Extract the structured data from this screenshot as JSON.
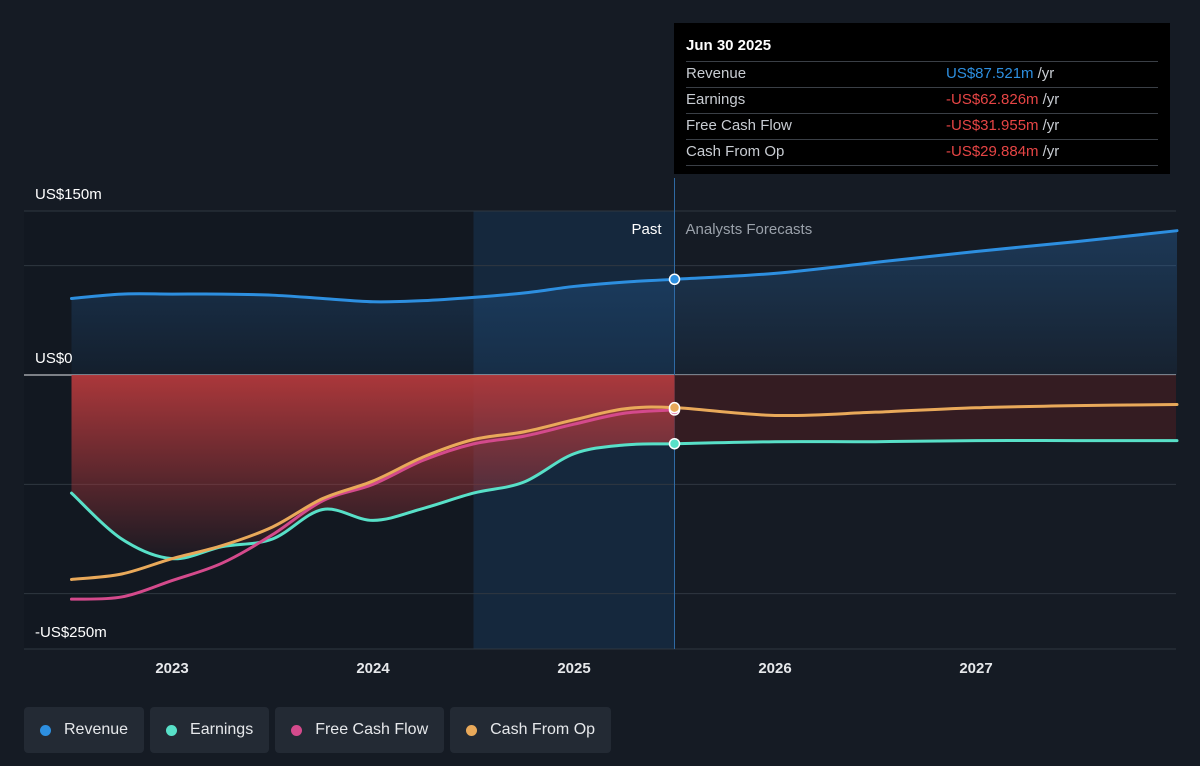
{
  "chart_data": {
    "type": "line",
    "y_unit": "US$ millions",
    "ylim": [
      -250,
      150
    ],
    "y_tick_labels": [
      {
        "value": 150,
        "label": "US$150m"
      },
      {
        "value": 0,
        "label": "US$0"
      },
      {
        "value": -250,
        "label": "-US$250m"
      }
    ],
    "x_tick_labels": [
      {
        "value": 2023,
        "label": "2023"
      },
      {
        "value": 2024,
        "label": "2024"
      },
      {
        "value": 2025,
        "label": "2025"
      },
      {
        "value": 2026,
        "label": "2026"
      },
      {
        "value": 2027,
        "label": "2027"
      }
    ],
    "xlim": [
      2022.26,
      2028.0
    ],
    "shaded_from": 2024.5,
    "divider_at": 2025.5,
    "past_label": "Past",
    "forecast_label": "Analysts Forecasts",
    "series": [
      {
        "name": "Revenue",
        "color": "#2d8fe0",
        "points": [
          [
            2022.5,
            70
          ],
          [
            2022.75,
            74
          ],
          [
            2023.0,
            74
          ],
          [
            2023.25,
            74
          ],
          [
            2023.5,
            73
          ],
          [
            2023.75,
            70
          ],
          [
            2024.0,
            67
          ],
          [
            2024.25,
            68
          ],
          [
            2024.5,
            71
          ],
          [
            2024.75,
            75
          ],
          [
            2025.0,
            81
          ],
          [
            2025.25,
            85
          ],
          [
            2025.5,
            87.521
          ],
          [
            2026.0,
            93
          ],
          [
            2026.5,
            103
          ],
          [
            2027.0,
            113
          ],
          [
            2027.5,
            122
          ],
          [
            2028.0,
            132
          ]
        ]
      },
      {
        "name": "Earnings",
        "color": "#58e0c8",
        "points": [
          [
            2022.5,
            -108
          ],
          [
            2022.75,
            -150
          ],
          [
            2023.0,
            -168
          ],
          [
            2023.25,
            -157
          ],
          [
            2023.5,
            -150
          ],
          [
            2023.75,
            -123
          ],
          [
            2024.0,
            -133
          ],
          [
            2024.25,
            -122
          ],
          [
            2024.5,
            -108
          ],
          [
            2024.75,
            -98
          ],
          [
            2025.0,
            -72
          ],
          [
            2025.25,
            -64
          ],
          [
            2025.5,
            -62.826
          ],
          [
            2026.0,
            -61
          ],
          [
            2026.5,
            -61
          ],
          [
            2027.0,
            -60
          ],
          [
            2027.5,
            -60
          ],
          [
            2028.0,
            -60
          ]
        ]
      },
      {
        "name": "Free Cash Flow",
        "color": "#d44a8c",
        "points": [
          [
            2022.5,
            -205
          ],
          [
            2022.75,
            -203
          ],
          [
            2023.0,
            -188
          ],
          [
            2023.25,
            -172
          ],
          [
            2023.5,
            -146
          ],
          [
            2023.75,
            -115
          ],
          [
            2024.0,
            -100
          ],
          [
            2024.25,
            -78
          ],
          [
            2024.5,
            -63
          ],
          [
            2024.75,
            -56
          ],
          [
            2025.0,
            -45
          ],
          [
            2025.25,
            -35
          ],
          [
            2025.5,
            -31.955
          ]
        ]
      },
      {
        "name": "Cash From Op",
        "color": "#e9a95a",
        "points": [
          [
            2022.5,
            -187
          ],
          [
            2022.75,
            -182
          ],
          [
            2023.0,
            -168
          ],
          [
            2023.25,
            -156
          ],
          [
            2023.5,
            -139
          ],
          [
            2023.75,
            -113
          ],
          [
            2024.0,
            -97
          ],
          [
            2024.25,
            -75
          ],
          [
            2024.5,
            -59
          ],
          [
            2024.75,
            -52
          ],
          [
            2025.0,
            -41
          ],
          [
            2025.25,
            -31
          ],
          [
            2025.5,
            -29.884
          ],
          [
            2026.0,
            -37
          ],
          [
            2026.5,
            -34
          ],
          [
            2027.0,
            -30
          ],
          [
            2027.5,
            -28
          ],
          [
            2028.0,
            -27
          ]
        ]
      }
    ]
  },
  "tooltip": {
    "date": "Jun 30 2025",
    "rows": [
      {
        "label": "Revenue",
        "value": "US$87.521m",
        "unit": "/yr",
        "color": "#2d8fe0"
      },
      {
        "label": "Earnings",
        "value": "-US$62.826m",
        "unit": "/yr",
        "color": "#e64545"
      },
      {
        "label": "Free Cash Flow",
        "value": "-US$31.955m",
        "unit": "/yr",
        "color": "#e64545"
      },
      {
        "label": "Cash From Op",
        "value": "-US$29.884m",
        "unit": "/yr",
        "color": "#e64545"
      }
    ]
  },
  "legend": [
    {
      "label": "Revenue",
      "color": "#2d8fe0"
    },
    {
      "label": "Earnings",
      "color": "#58e0c8"
    },
    {
      "label": "Free Cash Flow",
      "color": "#d44a8c"
    },
    {
      "label": "Cash From Op",
      "color": "#e9a95a"
    }
  ]
}
